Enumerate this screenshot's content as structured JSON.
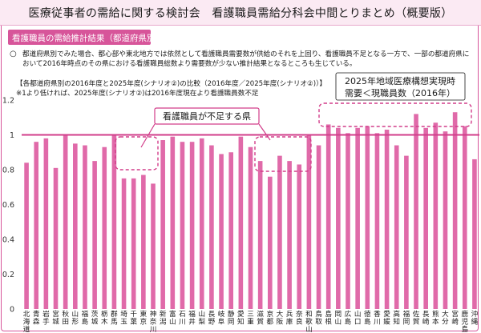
{
  "header": {
    "title": "医療従事者の需給に関する検討会　看護職員需給分科会中間とりまとめ（概要版）"
  },
  "section": {
    "title": "看護職員の需給推計結果（都道府県別）"
  },
  "bullet": {
    "mark": "○",
    "text": "都道府県別でみた場合、都心部や東北地方では依然として看護職員需要数が供給のそれを上回り、看護職員不足となる一方で、一部の都道府県において2016年時点のその県における看護職員総数より需要数が少ない推計結果となるところも生じている。"
  },
  "chart_heading": {
    "title": "【各都道府県別の2016年度と2025年度(シナリオ②)の比較（2016年度／2025年度(シナリオ②)）】",
    "note": "※1より低ければ、2025年度(シナリオ②)は2016年度現在より看護職員数不足"
  },
  "callouts": {
    "shortage": "看護職員が不足する県",
    "surplus_line1": "2025年地域医療構想実現時",
    "surplus_line2": "需要＜現職員数（2016年）"
  },
  "colors": {
    "bar": "#e06aa9",
    "reference_line": "#d23d8a",
    "callout_border": "#d23d8a",
    "frame": "#d7559a",
    "section_bg": "#d7559a",
    "banner_bg": "#fbeaf3"
  },
  "chart_data": {
    "type": "bar",
    "title": "【各都道府県別の2016年度と2025年度(シナリオ②)の比較（2016年度／2025年度(シナリオ②)）】",
    "categories": [
      "北海道",
      "青森",
      "岩手",
      "宮城",
      "秋田",
      "山形",
      "福島",
      "茨城",
      "栃木",
      "群馬",
      "埼玉",
      "千葉",
      "東京",
      "神奈川",
      "新潟",
      "富山",
      "石川",
      "福井",
      "山梨",
      "長野",
      "岐阜",
      "静岡",
      "愛知",
      "三重",
      "滋賀",
      "京都",
      "大阪",
      "兵庫",
      "奈良",
      "和歌山",
      "鳥取",
      "島根",
      "岡山",
      "広島",
      "山口",
      "徳島",
      "香川",
      "愛媛",
      "高知",
      "福岡",
      "佐賀",
      "長崎",
      "熊本",
      "大分",
      "宮崎",
      "鹿児島",
      "沖縄"
    ],
    "values": [
      0.84,
      0.96,
      0.98,
      0.81,
      1.0,
      0.95,
      0.94,
      0.85,
      0.93,
      1.0,
      0.75,
      0.75,
      0.77,
      0.72,
      0.97,
      0.99,
      0.96,
      0.96,
      0.98,
      0.94,
      0.89,
      0.9,
      0.99,
      0.93,
      0.85,
      0.76,
      0.88,
      0.85,
      0.83,
      1.0,
      0.94,
      1.06,
      1.04,
      1.01,
      1.04,
      1.05,
      1.01,
      1.03,
      0.94,
      0.88,
      1.12,
      1.04,
      1.07,
      1.02,
      1.13,
      1.05,
      0.86
    ],
    "reference_value": 1.0,
    "ylim": [
      0,
      1.2
    ],
    "yticks": [
      "0",
      "0.2",
      "0.4",
      "0.6",
      "0.8",
      "1",
      "1.2"
    ],
    "grid": false,
    "legend": "none"
  }
}
